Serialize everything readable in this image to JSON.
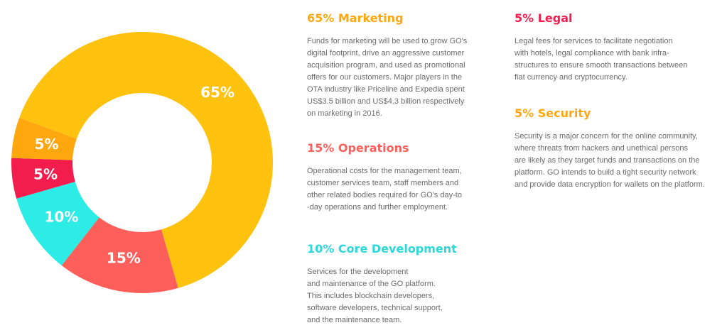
{
  "chart_data": {
    "type": "pie",
    "categories": [
      "Marketing",
      "Operations",
      "Core Development",
      "Legal",
      "Security"
    ],
    "values": [
      65,
      15,
      10,
      5,
      5
    ],
    "labels": [
      "65%",
      "15%",
      "10%",
      "5%",
      "5%"
    ],
    "colors": [
      "#FFC20E",
      "#FF5F5B",
      "#2DEBE5",
      "#F21D4D",
      "#FFA70E"
    ]
  },
  "sections": [
    {
      "key": "marketing",
      "title": "65% Marketing",
      "color": "#FFA70E",
      "lines": [
        "Funds for marketing will be used to grow GO's",
        "digital footprint, drive an aggressive customer",
        "acquisition program, and used as promotional",
        "offers for our customers. Major players in the",
        "OTA industry like Priceline and Expedia spent",
        "US$3.5 billion and US$4.3 billion respectively",
        "on marketing in 2016."
      ]
    },
    {
      "key": "operations",
      "title": "15% Operations",
      "color": "#FF5F5B",
      "lines": [
        "Operational costs for the management team,",
        "customer services team, staff members and",
        "other related bodies required for GO's day-to",
        "-day operations and further employment."
      ]
    },
    {
      "key": "core-development",
      "title": "10% Core Development",
      "color": "#2BD9DB",
      "lines": [
        "Services for the development",
        "and maintenance of the GO platform.",
        "This includes blockchain developers,",
        "software developers, technical support,",
        "and the maintenance team."
      ]
    },
    {
      "key": "legal",
      "title": "5% Legal",
      "color": "#F21D4D",
      "lines": [
        "Legal fees for services to facilitate negotiation",
        "with hotels, legal compliance with bank infra-",
        "structures to ensure smooth transactions between",
        "fiat currency and cryptocurrency."
      ]
    },
    {
      "key": "security",
      "title": "5% Security",
      "color": "#FFA70E",
      "lines": [
        "Security is a major concern for the online community,",
        "where threats from hackers and unethical persons",
        "are likely as they target funds and transactions on the",
        "platform. GO intends to build a tight security network",
        "and provide data encryption for wallets on the platform."
      ]
    }
  ]
}
